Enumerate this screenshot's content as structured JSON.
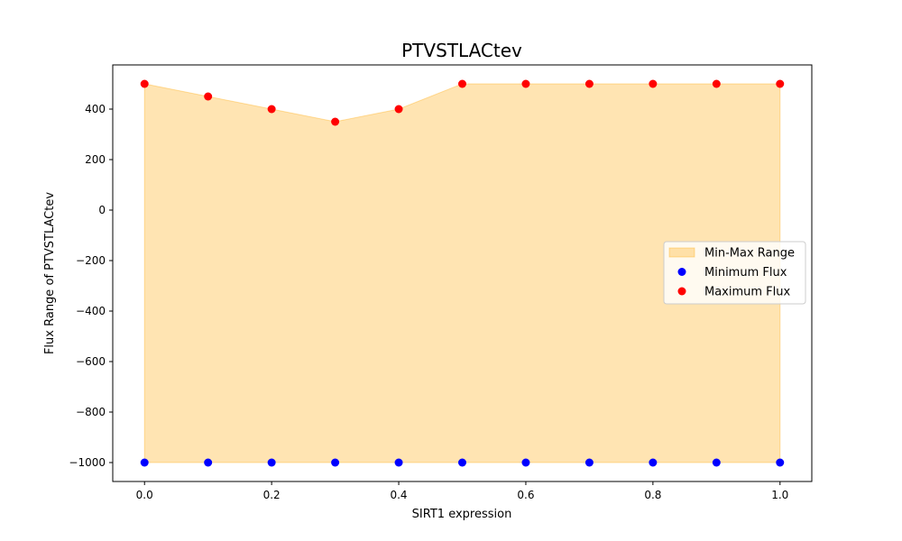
{
  "chart_data": {
    "type": "scatter",
    "title": "PTVSTLACtev",
    "xlabel": "SIRT1 expression",
    "ylabel": "Flux Range of PTVSTLACtev",
    "x": [
      0.0,
      0.1,
      0.2,
      0.3,
      0.4,
      0.5,
      0.6,
      0.7,
      0.8,
      0.9,
      1.0
    ],
    "series": [
      {
        "name": "Minimum Flux",
        "color": "#0000ff",
        "values": [
          -1000,
          -1000,
          -1000,
          -1000,
          -1000,
          -1000,
          -1000,
          -1000,
          -1000,
          -1000,
          -1000
        ]
      },
      {
        "name": "Maximum Flux",
        "color": "#ff0000",
        "values": [
          500,
          450,
          400,
          350,
          400,
          500,
          500,
          500,
          500,
          500,
          500
        ]
      }
    ],
    "fill": {
      "name": "Min-Max Range",
      "color": "#ffa500",
      "opacity": 0.3
    },
    "xlim": [
      -0.05,
      1.05
    ],
    "ylim": [
      -1075,
      575
    ],
    "xticks": [
      0.0,
      0.2,
      0.4,
      0.6,
      0.8,
      1.0
    ],
    "xtick_labels": [
      "0.0",
      "0.2",
      "0.4",
      "0.6",
      "0.8",
      "1.0"
    ],
    "yticks": [
      -1000,
      -800,
      -600,
      -400,
      -200,
      0,
      200,
      400
    ],
    "ytick_labels": [
      "−1000",
      "−800",
      "−600",
      "−400",
      "−200",
      "0",
      "200",
      "400"
    ],
    "grid": false,
    "legend_position": "center-right"
  }
}
